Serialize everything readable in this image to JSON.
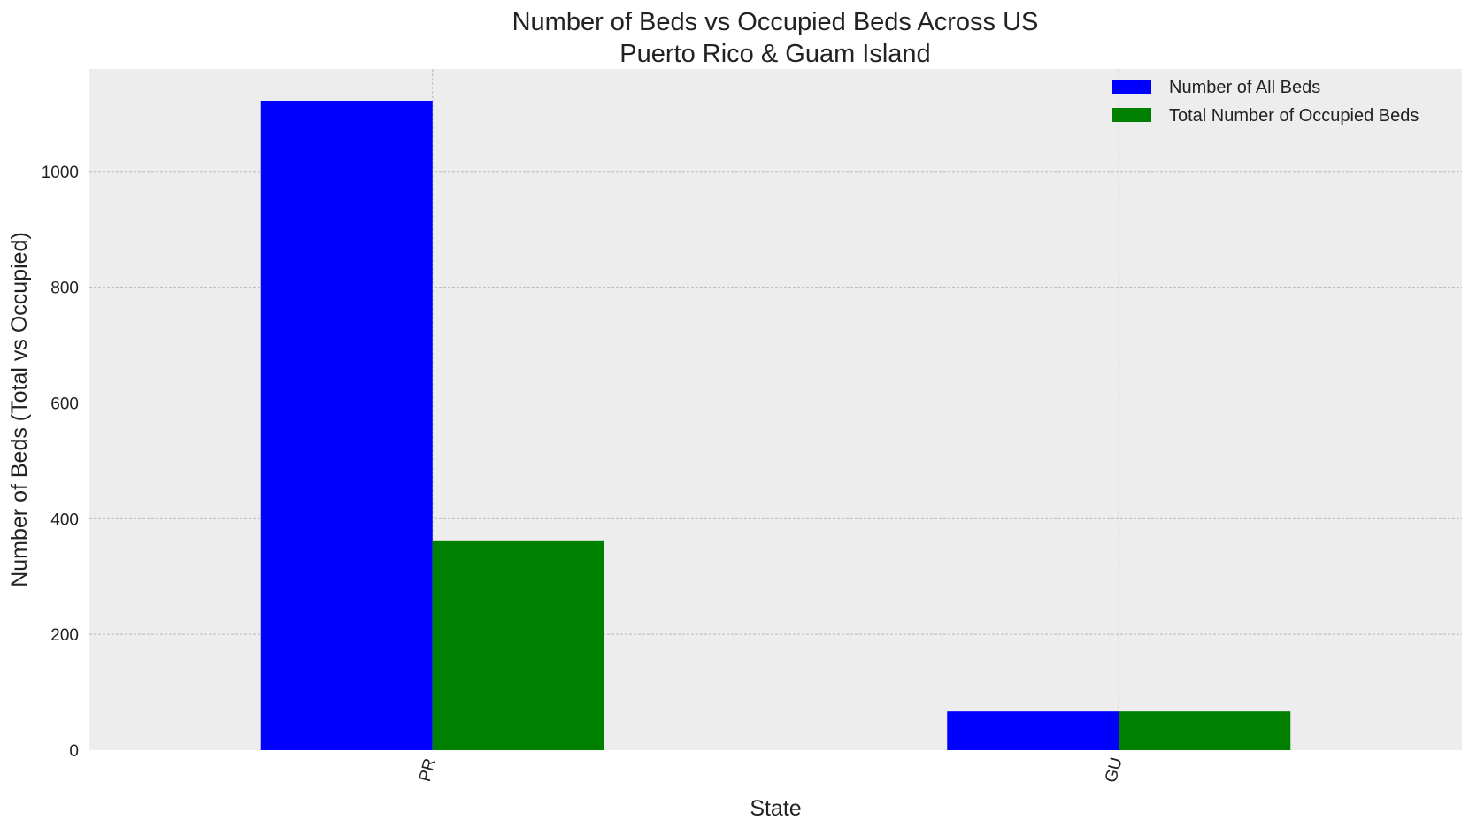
{
  "chart_data": {
    "type": "bar",
    "title_lines": [
      "Number of Beds vs Occupied Beds Across US",
      "Puerto Rico & Guam Island"
    ],
    "xlabel": "State",
    "ylabel": "Number of Beds (Total vs Occupied)",
    "categories": [
      "PR",
      "GU"
    ],
    "series": [
      {
        "name": "Number of All Beds",
        "color": "#0000ff",
        "values": [
          1122,
          67
        ]
      },
      {
        "name": "Total Number of Occupied Beds",
        "color": "#008000",
        "values": [
          361,
          67
        ]
      }
    ],
    "ylim": [
      0,
      1177
    ],
    "yticks": [
      0,
      200,
      400,
      600,
      800,
      1000
    ],
    "grid": true,
    "legend_position": "top-right",
    "background_color": "#ededed"
  }
}
